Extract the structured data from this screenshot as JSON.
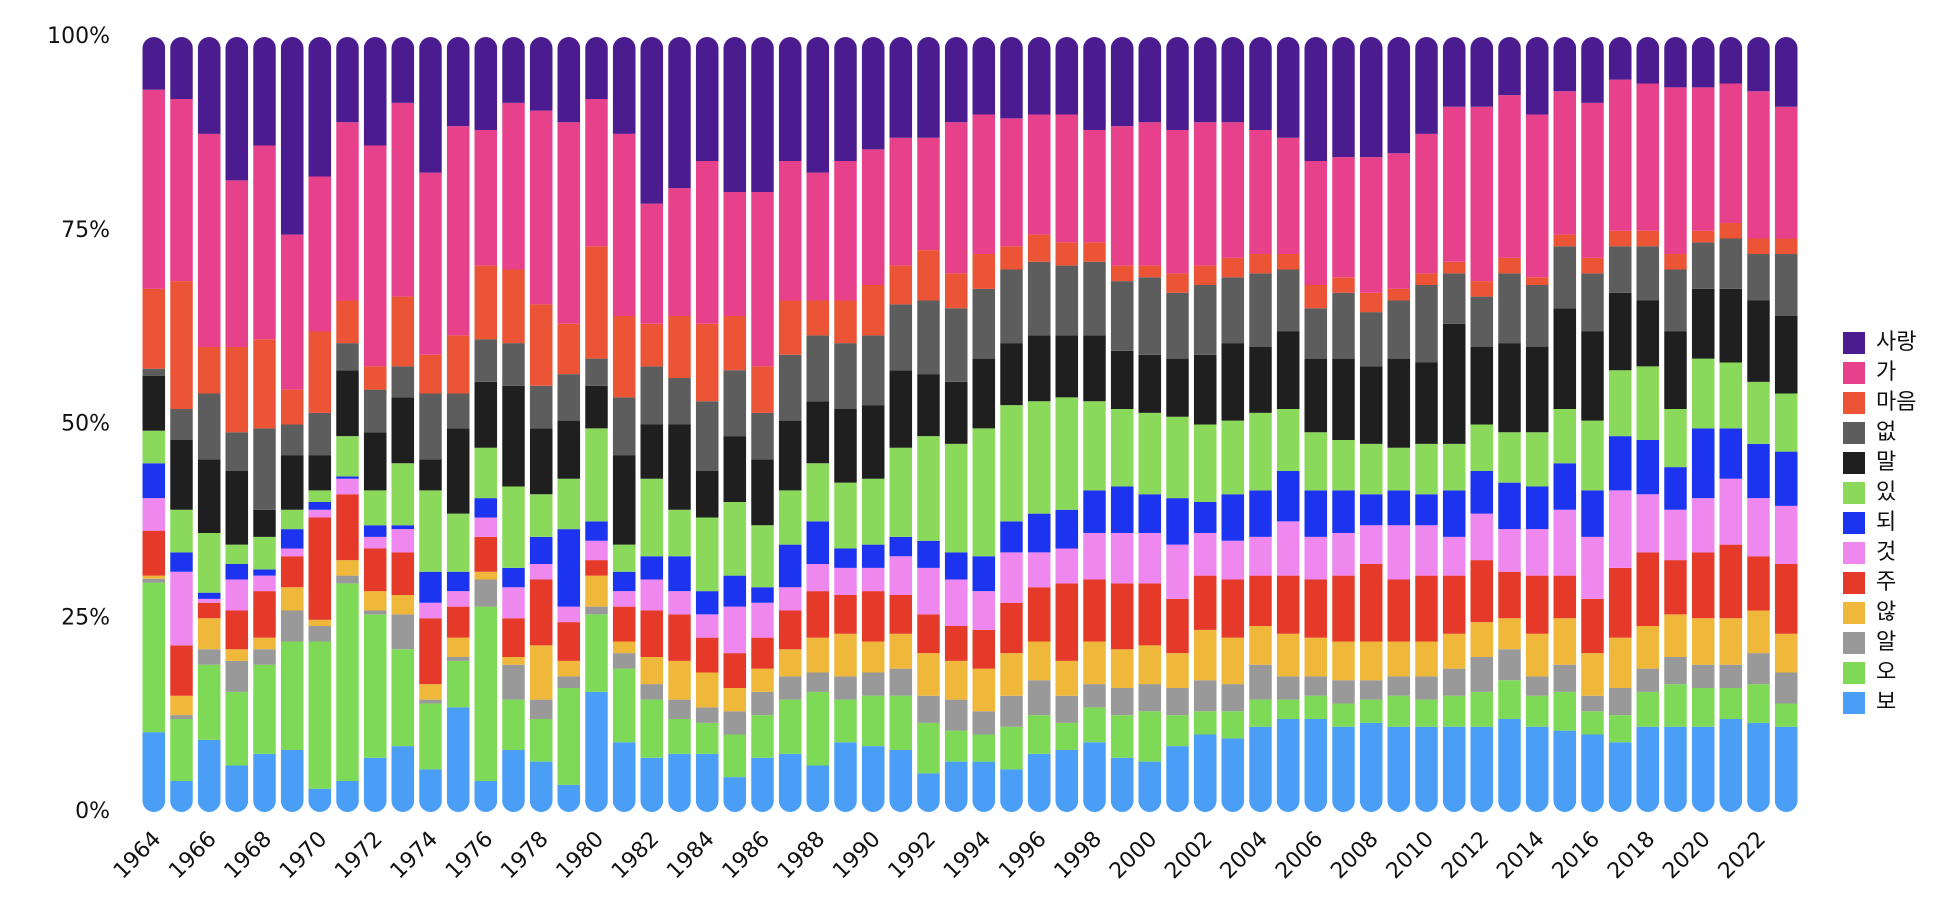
{
  "chart_data": {
    "type": "stacked_bar",
    "categories": [
      "1964",
      null,
      "1966",
      null,
      "1968",
      null,
      "1970",
      null,
      "1972",
      null,
      "1974",
      null,
      "1976",
      null,
      "1978",
      null,
      "1980",
      null,
      "1982",
      null,
      "1984",
      null,
      "1986",
      null,
      "1988",
      null,
      "1990",
      null,
      "1992",
      null,
      "1994",
      null,
      "1996",
      null,
      "1998",
      null,
      "2000",
      null,
      "2002",
      null,
      "2004",
      null,
      "2006",
      null,
      "2008",
      null,
      "2010",
      null,
      "2012",
      null,
      "2014",
      null,
      "2016",
      null,
      "2018",
      null,
      "2020",
      null,
      "2022",
      null
    ],
    "ylim": [
      0,
      100
    ],
    "yticks": [
      {
        "value": 0,
        "label": "0%"
      },
      {
        "value": 25,
        "label": "25%"
      },
      {
        "value": 50,
        "label": "50%"
      },
      {
        "value": 75,
        "label": "75%"
      },
      {
        "value": 100,
        "label": "100%"
      }
    ],
    "legend": "right",
    "series": [
      {
        "name": "보",
        "color": "#4a9ef5",
        "values": [
          10.3,
          4,
          9.3,
          6,
          7.5,
          8,
          3,
          4,
          7,
          8.5,
          5.5,
          13.5,
          4,
          8,
          6.5,
          3.5,
          15.5,
          9,
          7,
          7.5,
          7.5,
          4.5,
          7,
          7.5,
          6,
          9,
          8.5,
          8,
          5,
          6.5,
          6.5,
          5.5,
          7.5,
          8,
          9,
          7,
          6.5,
          8.5,
          10,
          9.5,
          11,
          12,
          12,
          11,
          11.5,
          11,
          11,
          11,
          11,
          12,
          11,
          10.5,
          10,
          9,
          11,
          11,
          11,
          12,
          11.5,
          11
        ]
      },
      {
        "name": "오",
        "color": "#7ed957",
        "values": [
          19.3,
          8,
          9.7,
          9.5,
          11.5,
          14,
          19,
          25.5,
          18.5,
          12.5,
          8.5,
          6,
          22.5,
          6.5,
          5.5,
          12.5,
          10,
          9.5,
          7.5,
          4.5,
          4,
          5.5,
          5.5,
          7,
          9.5,
          5.5,
          6.5,
          7,
          6.5,
          4,
          3.5,
          5.5,
          5,
          3.5,
          4.5,
          5.5,
          6.5,
          4,
          3,
          3.5,
          3.5,
          2.5,
          3,
          3,
          3,
          4,
          3.5,
          4,
          4.5,
          5,
          4,
          5,
          3,
          3.5,
          4.5,
          5.5,
          5,
          4,
          5,
          3
        ]
      },
      {
        "name": "알",
        "color": "#999999",
        "values": [
          0.5,
          0.5,
          2,
          4,
          2,
          4,
          2,
          1,
          0.5,
          4.5,
          0.5,
          0.5,
          3.5,
          4.5,
          2.5,
          1.5,
          1,
          2,
          2,
          2.5,
          2,
          3,
          3,
          3,
          2.5,
          3,
          3,
          3.5,
          3.5,
          4,
          3,
          4,
          4.5,
          3.5,
          3,
          3.5,
          3.5,
          3.5,
          4,
          3.5,
          4.5,
          3,
          2.5,
          3,
          2.5,
          2.5,
          3,
          3.5,
          4.5,
          4,
          2.5,
          3.5,
          2,
          3.5,
          3,
          3.5,
          3,
          3,
          4,
          4
        ]
      },
      {
        "name": "않",
        "color": "#f0b83a",
        "values": [
          0.4,
          2.5,
          4,
          1.5,
          1.5,
          3,
          0.8,
          2,
          2.5,
          2.5,
          2,
          2.5,
          1,
          1,
          7,
          2,
          4,
          1.5,
          3.5,
          5,
          4.5,
          3,
          3,
          3.5,
          4.5,
          5.5,
          4,
          4.5,
          5.5,
          5,
          5.5,
          5.5,
          5,
          4.5,
          5.5,
          5,
          5,
          4.5,
          6.5,
          6,
          5,
          5.5,
          5,
          5,
          5,
          4.5,
          4.5,
          4.5,
          4.5,
          4,
          5.5,
          6,
          5.5,
          6.5,
          5.5,
          5.5,
          6,
          6,
          5.5,
          5
        ]
      },
      {
        "name": "주",
        "color": "#e5392a",
        "values": [
          5.8,
          6.5,
          2,
          5,
          6,
          4,
          13.2,
          8.5,
          5.5,
          5.5,
          8.5,
          4,
          4.5,
          5,
          8.5,
          5,
          2,
          4.5,
          6,
          6,
          4.5,
          4.5,
          4,
          5,
          6,
          5,
          6.5,
          5,
          5,
          4.5,
          5,
          6.5,
          7,
          10,
          8,
          8.5,
          8,
          7,
          7,
          7.5,
          6.5,
          7.5,
          7.5,
          8.5,
          10,
          8,
          8.5,
          7.5,
          8,
          6,
          7.5,
          5.5,
          7,
          9,
          9.5,
          7,
          8.5,
          9.5,
          7,
          9
        ]
      },
      {
        "name": "것",
        "color": "#ee88ee",
        "values": [
          4.2,
          9.5,
          0.5,
          4,
          2,
          1,
          1,
          2,
          1.5,
          3,
          2,
          2,
          2.5,
          4,
          2,
          2,
          2.5,
          2,
          4,
          3,
          3,
          6,
          4.5,
          3,
          3.5,
          3.5,
          3,
          5,
          6,
          6,
          5,
          6.5,
          4.5,
          4.5,
          6,
          6.5,
          6.5,
          7,
          5.5,
          5,
          5,
          7,
          5.5,
          5.5,
          5,
          7,
          6.5,
          5,
          6,
          5.5,
          6,
          8.5,
          8,
          10,
          7.5,
          6.5,
          7,
          8.5,
          7.5,
          7.5
        ]
      },
      {
        "name": "되",
        "color": "#1c34f0",
        "values": [
          4.5,
          2.5,
          0.8,
          2,
          0.8,
          2.5,
          1,
          0.3,
          1.5,
          0.5,
          4,
          2.5,
          2.5,
          2.5,
          3.5,
          10,
          2.5,
          2.5,
          3,
          4.5,
          3,
          4,
          2,
          5.5,
          5.5,
          2.5,
          3,
          2.5,
          3.5,
          3.5,
          4.5,
          4,
          5,
          5,
          5.5,
          6,
          5,
          6,
          4,
          6,
          6,
          6.5,
          6,
          5.5,
          4,
          4.5,
          4,
          6,
          5.5,
          6,
          5.5,
          6,
          6,
          7,
          7,
          5.5,
          9,
          6.5,
          7,
          7
        ]
      },
      {
        "name": "있",
        "color": "#8ad95a",
        "values": [
          4.2,
          5.5,
          7.7,
          2.5,
          4.2,
          2.5,
          1.5,
          5.2,
          4.5,
          8,
          10.5,
          7.5,
          6.5,
          10.5,
          5.5,
          6.5,
          12,
          3.5,
          10,
          6,
          9.5,
          9.5,
          8,
          7,
          7.5,
          8.5,
          8.5,
          11.5,
          13.5,
          14,
          16.5,
          15,
          14.5,
          14.5,
          11.5,
          10,
          10.5,
          10.5,
          10,
          9.5,
          10,
          8,
          7.5,
          6.5,
          6.5,
          5.5,
          6.5,
          6,
          6,
          6.5,
          7,
          7,
          9,
          8.5,
          9.5,
          7.5,
          9,
          8.5,
          8,
          7.5
        ]
      },
      {
        "name": "말",
        "color": "#1f1f1f",
        "values": [
          7.1,
          9,
          9.5,
          9.5,
          3.5,
          7,
          4.5,
          8.5,
          7.5,
          8.5,
          4,
          11,
          8.5,
          13,
          8.5,
          7.5,
          5.5,
          11.5,
          7,
          11,
          6,
          8.5,
          8.5,
          9,
          8,
          9.5,
          9.5,
          10,
          8,
          8,
          9,
          8,
          8.5,
          8,
          8.5,
          7.5,
          7.5,
          7.5,
          9,
          10,
          8.5,
          10,
          9.5,
          10.5,
          10,
          11.5,
          10.5,
          15.5,
          10,
          11.5,
          11,
          13,
          11.5,
          10,
          8.5,
          10,
          9,
          9.5,
          10.5,
          10
        ]
      },
      {
        "name": "없",
        "color": "#5d5d5d",
        "values": [
          0.9,
          4,
          8.5,
          5,
          10.5,
          4,
          5.5,
          3.5,
          5.5,
          4,
          8.5,
          4.5,
          5.5,
          5.5,
          5.5,
          6,
          3.5,
          7.5,
          7.5,
          6,
          9,
          8.5,
          6,
          8.5,
          8.5,
          8.5,
          9,
          8.5,
          9.5,
          9.5,
          9,
          9.5,
          9.5,
          9,
          9.5,
          9,
          10,
          8.5,
          9,
          8.5,
          9.5,
          8,
          6.5,
          8.5,
          7,
          7.5,
          10,
          6.5,
          6.5,
          9,
          8,
          8,
          7.5,
          6,
          7,
          8,
          6,
          6.5,
          6,
          8
        ]
      },
      {
        "name": "마음",
        "color": "#ec5436",
        "values": [
          10.3,
          16.5,
          6,
          11,
          11.5,
          4.5,
          10.5,
          5.5,
          3,
          9,
          5,
          7.5,
          9.5,
          9.5,
          10.5,
          6.5,
          14.5,
          10.5,
          5.5,
          8,
          10,
          7,
          6,
          7,
          4.5,
          5.5,
          6.5,
          5,
          6.5,
          4.5,
          4.5,
          3,
          3.5,
          3,
          2.5,
          2,
          1.5,
          2.5,
          2.5,
          2.5,
          2.5,
          2,
          3,
          2,
          2.5,
          1.5,
          1.5,
          1.5,
          2,
          2,
          1,
          1.5,
          2,
          2,
          2,
          2,
          1.5,
          2,
          2,
          2
        ]
      },
      {
        "name": "가",
        "color": "#e8418c",
        "values": [
          25.7,
          23.5,
          27.5,
          21.5,
          25,
          20,
          20,
          23,
          28.5,
          25,
          23.5,
          27,
          17.5,
          21.5,
          25,
          26,
          19,
          23.5,
          15.5,
          16.5,
          21,
          16,
          22.5,
          18,
          16.5,
          18,
          17.5,
          16.5,
          14.5,
          19.5,
          18,
          16.5,
          15.5,
          16.5,
          14.5,
          18,
          18.5,
          18.5,
          18.5,
          17.5,
          16,
          15,
          16,
          15.5,
          17.5,
          17.5,
          18,
          20,
          22.5,
          21,
          21,
          18.5,
          20,
          19.5,
          19,
          21.5,
          18.5,
          18,
          19,
          17
        ]
      },
      {
        "name": "사랑",
        "color": "#4b1c8f",
        "values": [
          6.8,
          8,
          12.5,
          18.5,
          14,
          25.5,
          18,
          11,
          14,
          8.5,
          17.5,
          11.5,
          12,
          8.5,
          9.5,
          11,
          8,
          12.5,
          21.5,
          19.5,
          16,
          20,
          20,
          16,
          17.5,
          16,
          14.5,
          13,
          13,
          11,
          10,
          10.5,
          10,
          10,
          12,
          11.5,
          11,
          12,
          11,
          11,
          12,
          13,
          16,
          15.5,
          15.5,
          15,
          12.5,
          9,
          9,
          7.5,
          10,
          7,
          8.5,
          5.5,
          6,
          6.5,
          6.5,
          6,
          7,
          9
        ]
      }
    ]
  }
}
